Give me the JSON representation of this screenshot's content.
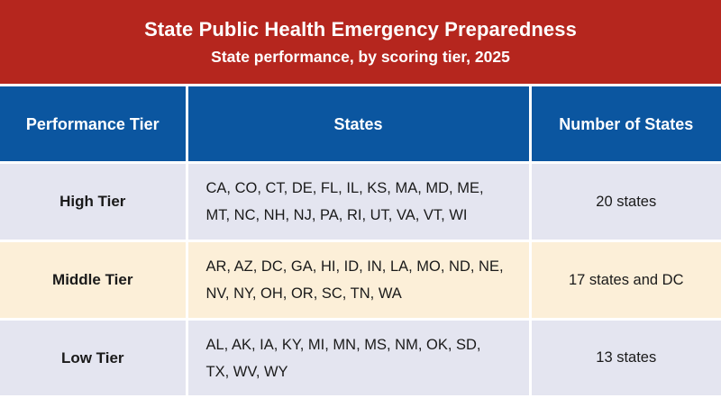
{
  "title": "State Public Health Emergency Preparedness",
  "subtitle": "State performance, by scoring tier, 2025",
  "columns": [
    "Performance Tier",
    "States",
    "Number of States"
  ],
  "rows": [
    {
      "tier": "High Tier",
      "states_line1": "CA, CO, CT, DE, FL, IL, KS, MA, MD, ME,",
      "states_line2": "MT, NC, NH, NJ, PA, RI, UT, VA, VT, WI",
      "count": "20 states"
    },
    {
      "tier": "Middle Tier",
      "states_line1": "AR, AZ, DC, GA, HI, ID, IN, LA, MO, ND, NE,",
      "states_line2": "NV, NY, OH, OR, SC, TN, WA",
      "count": "17 states and DC"
    },
    {
      "tier": "Low Tier",
      "states_line1": "AL, AK, IA, KY, MI, MN, MS, NM, OK, SD,",
      "states_line2": "TX, WV, WY",
      "count": "13 states"
    }
  ],
  "colors": {
    "title_bg": "#b5261e",
    "header_bg": "#0b56a0",
    "row_lavender": "#e4e5f0",
    "row_cream": "#fcefd8"
  }
}
